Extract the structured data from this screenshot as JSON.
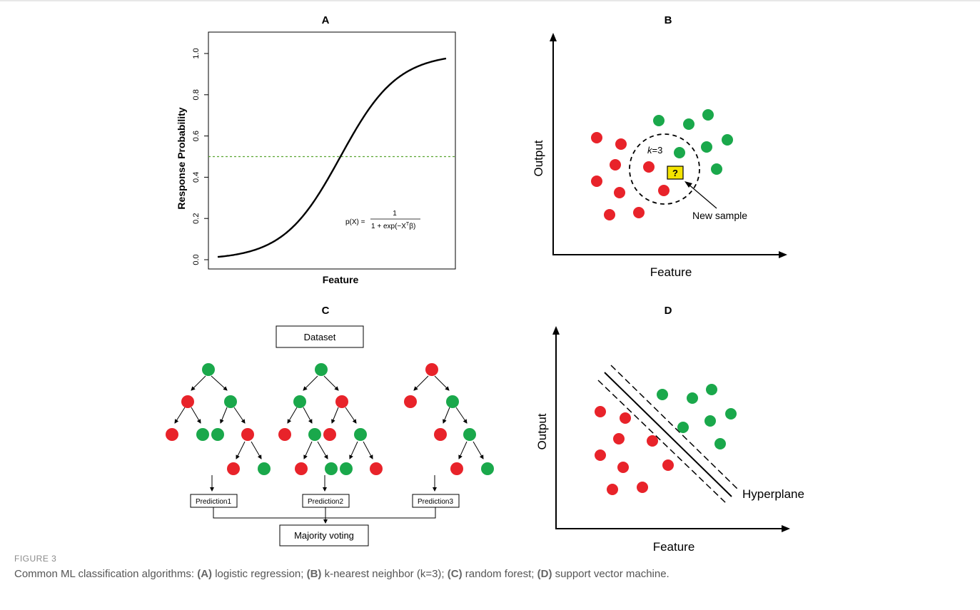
{
  "figure_label": "FIGURE 3",
  "caption": {
    "lead": "Common ML classification algorithms: ",
    "parts": [
      {
        "tag": "(A)",
        "text": " logistic regression; "
      },
      {
        "tag": "(B)",
        "text": " k-nearest neighbor (k=3); "
      },
      {
        "tag": "(C)",
        "text": " random forest; "
      },
      {
        "tag": "(D)",
        "text": " support vector machine."
      }
    ]
  },
  "panel_a": {
    "letter": "A",
    "xlabel": "Feature",
    "ylabel": "Response Probability",
    "yticks": [
      "0.0",
      "0.2",
      "0.4",
      "0.6",
      "0.8",
      "1.0"
    ],
    "formula_lhs": "p(X) =",
    "formula_num": "1",
    "formula_den": "1 + exp(−X",
    "formula_den_sup": "T",
    "formula_den_tail": "β)",
    "threshold": 0.5,
    "colors": {
      "curve": "#000000",
      "threshold": "#5aa532"
    }
  },
  "panel_b": {
    "letter": "B",
    "xlabel": "Feature",
    "ylabel": "Output",
    "k_label_italic": "k",
    "k_label_rest": "=3",
    "query_mark": "?",
    "new_sample_label": "New sample",
    "colors": {
      "red": "#e8232a",
      "green": "#1aa84b",
      "query": "#f4e400"
    }
  },
  "panel_c": {
    "letter": "C",
    "dataset_label": "Dataset",
    "predictions": [
      "Prediction1",
      "Prediction2",
      "Prediction3"
    ],
    "vote_label": "Majority voting"
  },
  "panel_d": {
    "letter": "D",
    "xlabel": "Feature",
    "ylabel": "Output",
    "hyperplane_label": "Hyperplane"
  }
}
